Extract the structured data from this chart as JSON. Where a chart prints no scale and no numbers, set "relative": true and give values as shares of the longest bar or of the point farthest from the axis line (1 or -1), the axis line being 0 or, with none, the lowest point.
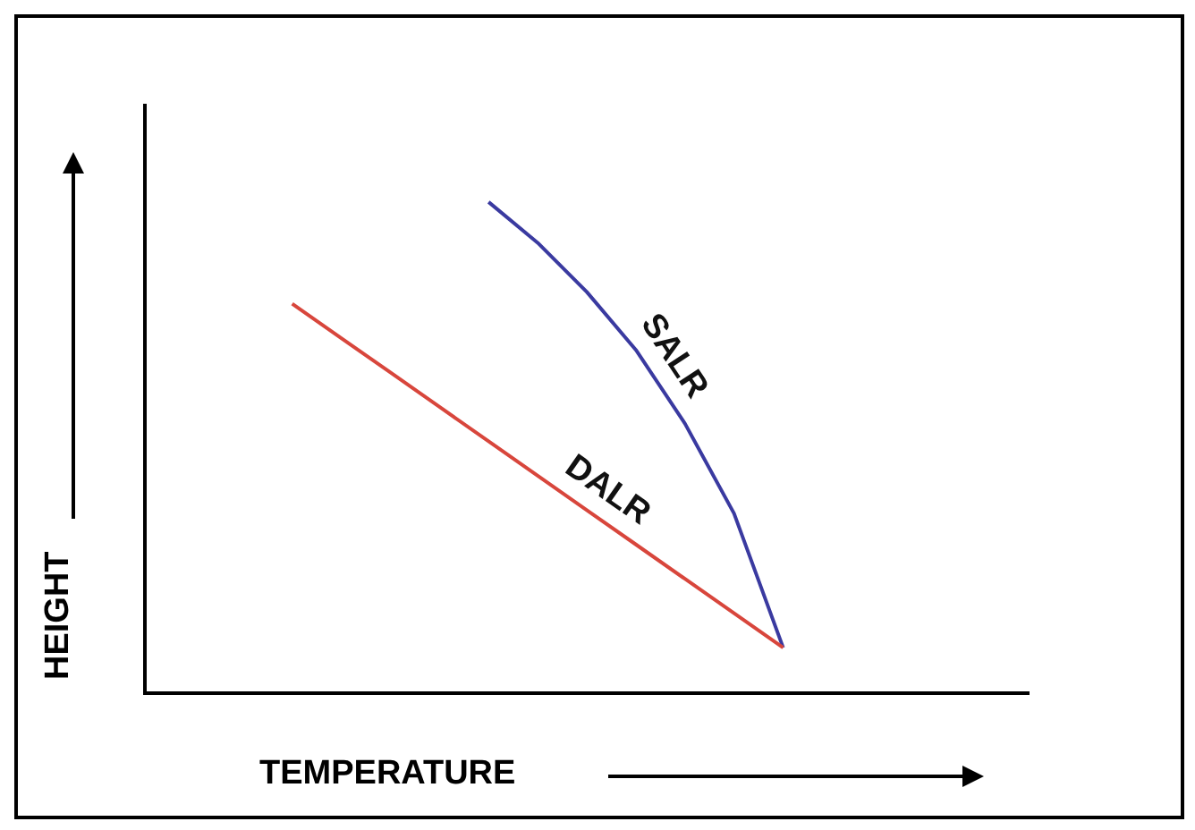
{
  "chart_data": {
    "type": "line",
    "relative": true,
    "xlabel": "TEMPERATURE",
    "ylabel": "HEIGHT",
    "marker": "none",
    "categories": [
      null,
      null,
      null,
      null,
      null,
      null,
      null,
      null,
      null,
      null,
      null,
      null,
      null,
      null,
      null,
      null,
      null,
      null,
      null
    ],
    "series": [
      {
        "name": "DALR",
        "color": "#d8463c",
        "values": [
          null,
          null,
          null,
          0.793,
          0.723,
          0.653,
          0.583,
          0.513,
          0.443,
          0.373,
          0.303,
          0.233,
          0.163,
          0.093,
          null,
          null,
          null,
          null,
          null
        ]
      },
      {
        "name": "SALR",
        "color": "#3a3aa0",
        "values": [
          null,
          null,
          null,
          null,
          null,
          null,
          null,
          1,
          0.917,
          0.817,
          0.699,
          0.549,
          0.366,
          0.093,
          null,
          null,
          null,
          null,
          null
        ]
      }
    ]
  }
}
